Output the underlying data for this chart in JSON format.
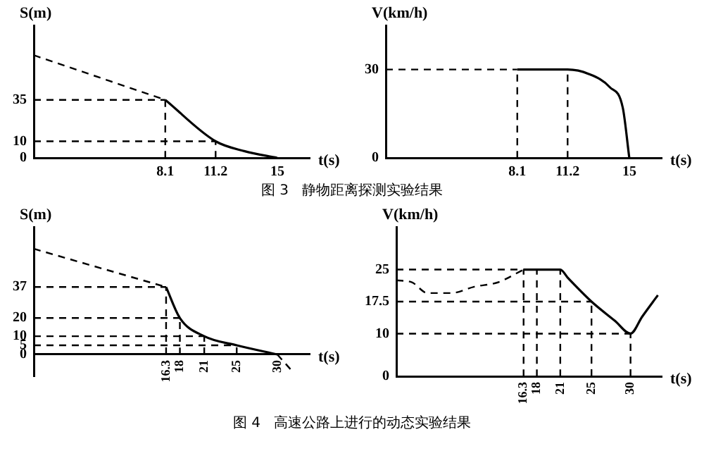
{
  "chart_data": [
    {
      "type": "line",
      "xlabel": "t(s)",
      "ylabel": "S(m)",
      "annotations": [
        "图 3   静物距离探测实验结果"
      ],
      "xlim": [
        0,
        17
      ],
      "ylim": [
        0,
        80
      ],
      "xticks": [
        8.1,
        11.2,
        15
      ],
      "yticks": [
        0,
        10,
        35
      ],
      "series": [
        {
          "color": "#000000",
          "line_style": "dashed",
          "x": [
            0,
            8.1
          ],
          "values": [
            62,
            35
          ]
        },
        {
          "color": "#000000",
          "line_style": "solid",
          "x": [
            8.1,
            11.2,
            13,
            15
          ],
          "values": [
            35,
            10,
            4,
            0
          ]
        },
        {
          "color": "#000000",
          "line_style": "dashed",
          "x": [
            0,
            8.1
          ],
          "values": [
            35,
            35
          ]
        },
        {
          "color": "#000000",
          "line_style": "dashed",
          "x": [
            0,
            11.2
          ],
          "values": [
            10,
            10
          ]
        },
        {
          "color": "#000000",
          "line_style": "dashed",
          "x": [
            8.1,
            8.1
          ],
          "values": [
            0,
            35
          ]
        },
        {
          "color": "#000000",
          "line_style": "dashed",
          "x": [
            11.2,
            11.2
          ],
          "values": [
            0,
            10
          ]
        }
      ]
    },
    {
      "type": "line",
      "xlabel": "t(s)",
      "ylabel": "V(km/h)",
      "xlim": [
        0,
        17
      ],
      "ylim": [
        0,
        45
      ],
      "xticks": [
        8.1,
        11.2,
        15
      ],
      "yticks": [
        0,
        30
      ],
      "series": [
        {
          "color": "#000000",
          "line_style": "solid",
          "x": [
            8.1,
            11.2,
            12.5,
            13.8,
            14.6,
            15
          ],
          "values": [
            30,
            30,
            28.5,
            24,
            17,
            0
          ]
        },
        {
          "color": "#000000",
          "line_style": "dashed",
          "x": [
            0,
            8.1
          ],
          "values": [
            30,
            30
          ]
        },
        {
          "color": "#000000",
          "line_style": "dashed",
          "x": [
            8.1,
            8.1
          ],
          "values": [
            0,
            30
          ]
        },
        {
          "color": "#000000",
          "line_style": "dashed",
          "x": [
            11.2,
            11.2
          ],
          "values": [
            0,
            30
          ]
        }
      ]
    },
    {
      "type": "line",
      "xlabel": "t(s)",
      "ylabel": "S(m)",
      "annotations": [
        "图 4   高速公路上进行的动态实验结果"
      ],
      "xlim": [
        0,
        34
      ],
      "ylim": [
        -12,
        70
      ],
      "xticks": [
        16.3,
        18,
        21,
        25,
        30
      ],
      "yticks": [
        0,
        5,
        10,
        20,
        37
      ],
      "series": [
        {
          "color": "#000000",
          "line_style": "dashed",
          "x": [
            0,
            16.3
          ],
          "values": [
            58,
            37
          ]
        },
        {
          "color": "#000000",
          "line_style": "solid",
          "x": [
            16.3,
            18,
            21,
            25,
            30
          ],
          "values": [
            37,
            20,
            10,
            5,
            0
          ]
        },
        {
          "color": "#000000",
          "line_style": "dashed",
          "x": [
            30,
            32
          ],
          "values": [
            0,
            -10
          ]
        },
        {
          "color": "#000000",
          "line_style": "dashed",
          "x": [
            0,
            16.3
          ],
          "values": [
            37,
            37
          ]
        },
        {
          "color": "#000000",
          "line_style": "dashed",
          "x": [
            0,
            18
          ],
          "values": [
            20,
            20
          ]
        },
        {
          "color": "#000000",
          "line_style": "dashed",
          "x": [
            0,
            21
          ],
          "values": [
            10,
            10
          ]
        },
        {
          "color": "#000000",
          "line_style": "dashed",
          "x": [
            0,
            25
          ],
          "values": [
            5,
            5
          ]
        },
        {
          "color": "#000000",
          "line_style": "dashed",
          "x": [
            16.3,
            16.3
          ],
          "values": [
            0,
            37
          ]
        },
        {
          "color": "#000000",
          "line_style": "dashed",
          "x": [
            18,
            18
          ],
          "values": [
            0,
            20
          ]
        },
        {
          "color": "#000000",
          "line_style": "dashed",
          "x": [
            21,
            21
          ],
          "values": [
            0,
            10
          ]
        },
        {
          "color": "#000000",
          "line_style": "dashed",
          "x": [
            25,
            25
          ],
          "values": [
            0,
            5
          ]
        }
      ]
    },
    {
      "type": "line",
      "xlabel": "t(s)",
      "ylabel": "V(km/h)",
      "xlim": [
        0,
        34
      ],
      "ylim": [
        0,
        35
      ],
      "xticks": [
        16.3,
        18,
        21,
        25,
        30
      ],
      "yticks": [
        0,
        10,
        17.5,
        25
      ],
      "series": [
        {
          "color": "#000000",
          "line_style": "dashed",
          "x": [
            0,
            2,
            4,
            7,
            10,
            13,
            16.3
          ],
          "values": [
            22.5,
            22,
            19.5,
            19.5,
            21,
            22,
            25
          ]
        },
        {
          "color": "#000000",
          "line_style": "solid",
          "x": [
            16.3,
            21,
            22,
            25,
            28,
            30,
            31.5,
            33.5
          ],
          "values": [
            25,
            25,
            23,
            17.5,
            13,
            10,
            14,
            19
          ]
        },
        {
          "color": "#000000",
          "line_style": "dashed",
          "x": [
            0,
            16.3
          ],
          "values": [
            25,
            25
          ]
        },
        {
          "color": "#000000",
          "line_style": "dashed",
          "x": [
            0,
            25
          ],
          "values": [
            17.5,
            17.5
          ]
        },
        {
          "color": "#000000",
          "line_style": "dashed",
          "x": [
            0,
            30
          ],
          "values": [
            10,
            10
          ]
        },
        {
          "color": "#000000",
          "line_style": "dashed",
          "x": [
            16.3,
            16.3
          ],
          "values": [
            0,
            25
          ]
        },
        {
          "color": "#000000",
          "line_style": "dashed",
          "x": [
            18,
            18
          ],
          "values": [
            0,
            25
          ]
        },
        {
          "color": "#000000",
          "line_style": "dashed",
          "x": [
            21,
            21
          ],
          "values": [
            0,
            25
          ]
        },
        {
          "color": "#000000",
          "line_style": "dashed",
          "x": [
            25,
            25
          ],
          "values": [
            0,
            17.5
          ]
        },
        {
          "color": "#000000",
          "line_style": "dashed",
          "x": [
            30,
            30
          ],
          "values": [
            0,
            10
          ]
        }
      ]
    }
  ]
}
